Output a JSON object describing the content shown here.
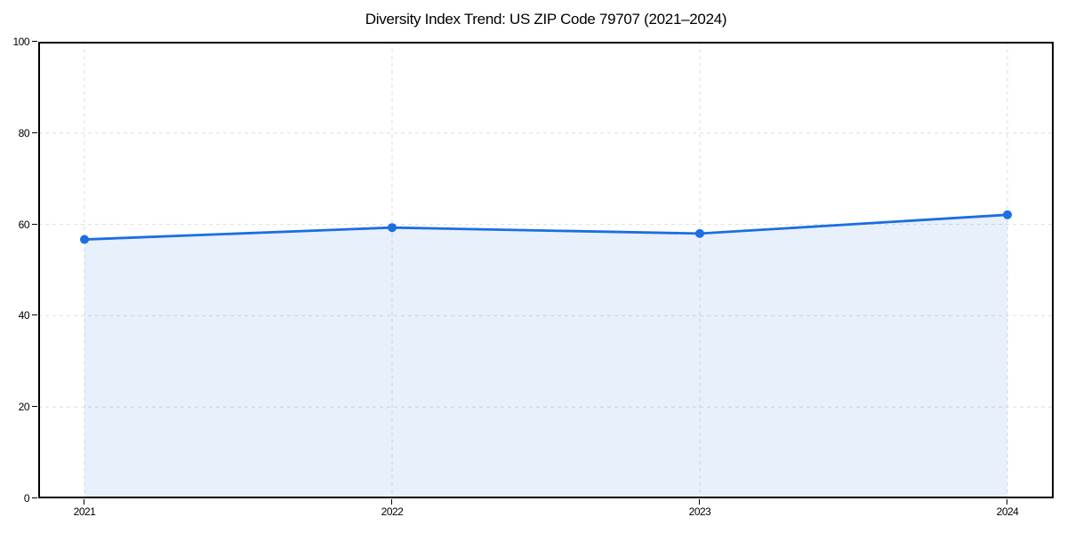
{
  "chart_data": {
    "type": "area",
    "title": "Diversity Index Trend: US ZIP Code 79707 (2021–2024)",
    "categories": [
      "2021",
      "2022",
      "2023",
      "2024"
    ],
    "values": [
      56.7,
      59.3,
      58.0,
      62.1
    ],
    "series_name": "Diversity Index",
    "xlabel": "",
    "ylabel": "",
    "ylim": [
      0,
      100
    ],
    "yticks": [
      0,
      20,
      40,
      60,
      80,
      100
    ],
    "grid": "dashed both axes",
    "legend": "none",
    "marker": "circle",
    "colors": {
      "line": "#1b6ee3",
      "fill": "rgba(27,110,227,0.10)",
      "grid": "#dedede",
      "spine": "#000000",
      "text": "#000000",
      "background": "#ffffff"
    }
  }
}
